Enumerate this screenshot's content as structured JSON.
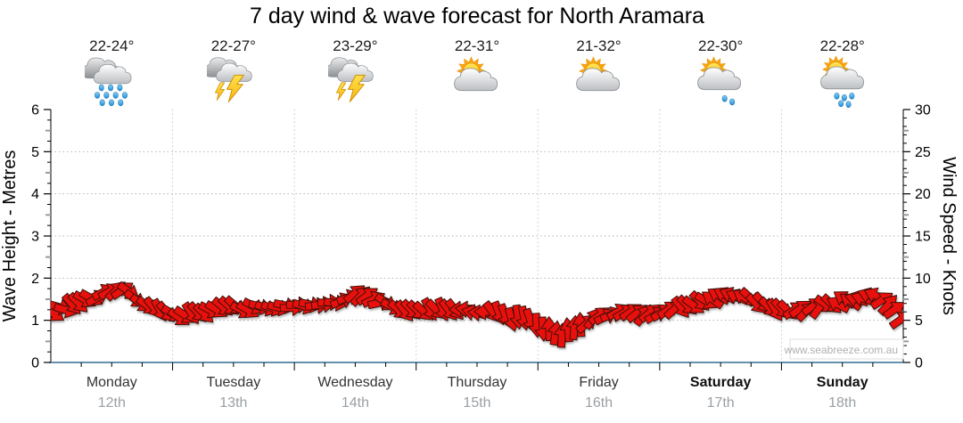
{
  "page": {
    "title": "7 day wind & wave forecast for North Aramara",
    "watermark": "www.seabreeze.com.au"
  },
  "days": [
    {
      "name": "Monday",
      "date": "12th",
      "temp": "22-24°",
      "icon": "rain",
      "bold": false
    },
    {
      "name": "Tuesday",
      "date": "13th",
      "temp": "22-27°",
      "icon": "thunderstorm",
      "bold": false
    },
    {
      "name": "Wednesday",
      "date": "14th",
      "temp": "23-29°",
      "icon": "thunderstorm",
      "bold": false
    },
    {
      "name": "Thursday",
      "date": "15th",
      "temp": "22-31°",
      "icon": "partly-cloudy",
      "bold": false
    },
    {
      "name": "Friday",
      "date": "16th",
      "temp": "21-32°",
      "icon": "partly-cloudy",
      "bold": false
    },
    {
      "name": "Saturday",
      "date": "17th",
      "temp": "22-30°",
      "icon": "sun-shower-light",
      "bold": true
    },
    {
      "name": "Sunday",
      "date": "18th",
      "temp": "22-28°",
      "icon": "sun-shower",
      "bold": true
    }
  ],
  "colors": {
    "arrow_red": "#e8100c",
    "arrow_outline": "#40100a",
    "x_axis_line": "#336b8f",
    "axis_black": "#000000",
    "grid_horizontal": "#b5b5b5",
    "grid_day_boundary": "#c6c6c6",
    "half_tick_gray": "#9a9a9a",
    "day_text": "#333333",
    "weekend_text": "#101010",
    "date_text": "#9aa0a4",
    "temp_text": "#1c1c1c",
    "watermark_text": "#b0b0b0",
    "watermark_box_border": "#dcdcdc"
  },
  "chart_data": {
    "type": "scatter",
    "title": "7 day wind & wave forecast for North Aramara",
    "legend_position": "none",
    "x_axis": {
      "categories": [
        "Monday 12th",
        "Tuesday 13th",
        "Wednesday 14th",
        "Thursday 15th",
        "Friday 16th",
        "Saturday 17th",
        "Sunday 18th"
      ],
      "minor_ticks_per_day": 4,
      "vertical_gridlines": "at day boundaries"
    },
    "left_axis": {
      "label": "Wave Height - Metres",
      "min": 0,
      "max": 6,
      "tick_step": 1,
      "gridlines": [
        1,
        2,
        3,
        4,
        5
      ]
    },
    "right_axis": {
      "label": "Wind Speed - Knots",
      "min": 0,
      "max": 30,
      "tick_step": 5
    },
    "scale_note": "axes aligned: 5 knots spans same height as 1 metre",
    "series": [
      {
        "name": "Wind speed & direction (red arrows)",
        "marker": "arrow",
        "color": "#e8100c",
        "point_format": [
          "day_offset",
          "knots",
          "direction_deg_ccw_from_east"
        ],
        "points": [
          [
            0.02,
            6.1,
            -35
          ],
          [
            0.1,
            6.4,
            -20
          ],
          [
            0.18,
            6.7,
            -45
          ],
          [
            0.28,
            7.2,
            -28
          ],
          [
            0.38,
            7.9,
            25
          ],
          [
            0.48,
            8.5,
            35
          ],
          [
            0.58,
            8.8,
            40
          ],
          [
            0.68,
            7.8,
            -35
          ],
          [
            0.8,
            6.5,
            -45
          ],
          [
            0.92,
            5.8,
            -52
          ],
          [
            1.05,
            5.6,
            -40
          ],
          [
            1.18,
            5.8,
            -55
          ],
          [
            1.32,
            6.2,
            -35
          ],
          [
            1.46,
            6.5,
            -45
          ],
          [
            1.6,
            6.4,
            -30
          ],
          [
            1.74,
            6.6,
            -18
          ],
          [
            1.88,
            6.6,
            -10
          ],
          [
            2.02,
            6.6,
            -8
          ],
          [
            2.16,
            6.7,
            -4
          ],
          [
            2.3,
            6.9,
            2
          ],
          [
            2.42,
            7.8,
            30
          ],
          [
            2.54,
            8.1,
            38
          ],
          [
            2.66,
            7.6,
            22
          ],
          [
            2.78,
            6.7,
            -35
          ],
          [
            2.9,
            6.1,
            -50
          ],
          [
            3.02,
            6.0,
            -45
          ],
          [
            3.15,
            6.3,
            -52
          ],
          [
            3.28,
            6.4,
            -60
          ],
          [
            3.4,
            6.3,
            180
          ],
          [
            3.52,
            6.1,
            172
          ],
          [
            3.64,
            5.8,
            -62
          ],
          [
            3.76,
            5.4,
            -68
          ],
          [
            3.88,
            5.1,
            -75
          ],
          [
            4.0,
            4.4,
            -82
          ],
          [
            4.1,
            3.7,
            88
          ],
          [
            4.2,
            3.4,
            90
          ],
          [
            4.3,
            3.9,
            84
          ],
          [
            4.42,
            4.8,
            45
          ],
          [
            4.54,
            5.6,
            32
          ],
          [
            4.66,
            6.0,
            25
          ],
          [
            4.78,
            5.9,
            38
          ],
          [
            4.9,
            5.8,
            45
          ],
          [
            5.0,
            5.9,
            40
          ],
          [
            5.1,
            6.2,
            35
          ],
          [
            5.22,
            6.6,
            -45
          ],
          [
            5.34,
            7.1,
            -40
          ],
          [
            5.46,
            7.7,
            150
          ],
          [
            5.58,
            8.0,
            160
          ],
          [
            5.68,
            7.8,
            150
          ],
          [
            5.8,
            7.2,
            -45
          ],
          [
            5.92,
            6.5,
            -50
          ],
          [
            6.04,
            6.0,
            -42
          ],
          [
            6.16,
            6.2,
            40
          ],
          [
            6.28,
            6.5,
            45
          ],
          [
            6.4,
            6.9,
            -40
          ],
          [
            6.52,
            7.3,
            155
          ],
          [
            6.64,
            7.7,
            160
          ],
          [
            6.74,
            7.9,
            150
          ],
          [
            6.84,
            7.2,
            40
          ],
          [
            6.92,
            6.2,
            32
          ],
          [
            6.99,
            4.9,
            28
          ]
        ]
      }
    ]
  }
}
